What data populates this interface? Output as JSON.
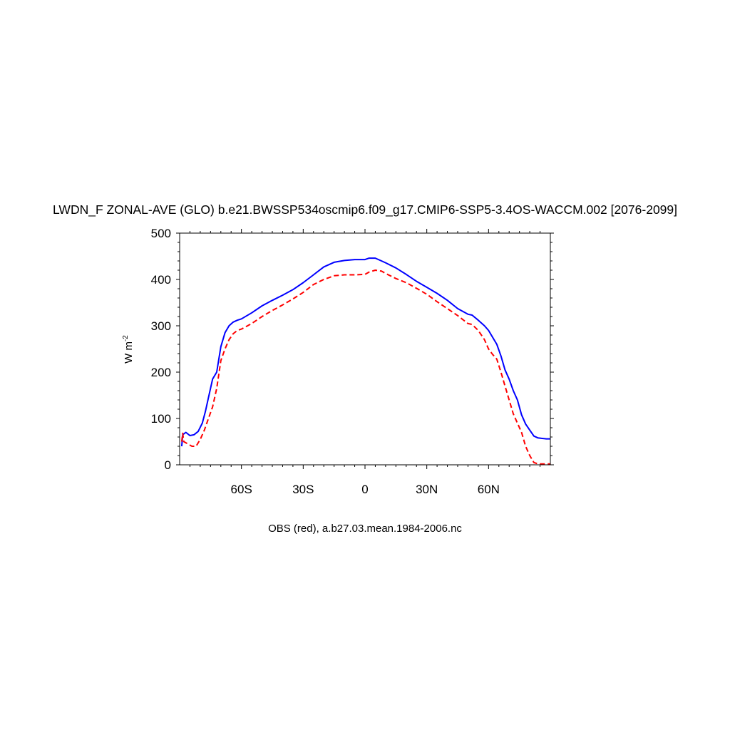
{
  "chart_data": {
    "type": "line",
    "title": "LWDN_F ZONAL-AVE (GLO) b.e21.BWSSP534oscmip6.f09_g17.CMIP6-SSP5-3.4OS-WACCM.002 [2076-2099]",
    "ylabel": "W m",
    "ylabel_sup": "-2",
    "xlabel": "",
    "caption": "OBS (red), a.b27.03.mean.1984-2006.nc",
    "xlim": [
      -90,
      90
    ],
    "ylim": [
      0,
      500
    ],
    "x_ticks": [
      {
        "value": -60,
        "label": "60S"
      },
      {
        "value": -30,
        "label": "30S"
      },
      {
        "value": 0,
        "label": "0"
      },
      {
        "value": 30,
        "label": "30N"
      },
      {
        "value": 60,
        "label": "60N"
      }
    ],
    "y_ticks": [
      {
        "value": 0,
        "label": "0"
      },
      {
        "value": 100,
        "label": "100"
      },
      {
        "value": 200,
        "label": "200"
      },
      {
        "value": 300,
        "label": "300"
      },
      {
        "value": 400,
        "label": "400"
      },
      {
        "value": 500,
        "label": "500"
      }
    ],
    "series": [
      {
        "color": "#0000ff",
        "dash": "solid",
        "x": [
          -89,
          -88.5,
          -87,
          -85,
          -83,
          -81,
          -79,
          -77.5,
          -76,
          -74,
          -72,
          -70,
          -68,
          -66,
          -64,
          -62,
          -60,
          -55,
          -50,
          -45,
          -40,
          -35,
          -30,
          -25,
          -20,
          -15,
          -10,
          -5,
          0,
          2,
          5,
          8,
          10,
          15,
          20,
          25,
          30,
          35,
          40,
          45,
          50,
          52,
          55,
          58,
          60,
          62,
          64,
          66,
          68,
          70,
          72,
          74,
          76,
          78,
          80,
          82,
          84,
          86,
          88,
          90
        ],
        "y": [
          40,
          65,
          70,
          63,
          65,
          72,
          90,
          115,
          145,
          185,
          200,
          255,
          285,
          300,
          308,
          312,
          315,
          328,
          343,
          355,
          366,
          378,
          393,
          410,
          427,
          437,
          441,
          443,
          443,
          446,
          446,
          440,
          436,
          425,
          411,
          396,
          383,
          370,
          355,
          337,
          325,
          323,
          312,
          300,
          290,
          275,
          260,
          235,
          205,
          185,
          160,
          140,
          108,
          88,
          75,
          62,
          58,
          57,
          56,
          56
        ]
      },
      {
        "color": "#ff0000",
        "dash": "dashed",
        "x": [
          -89,
          -88.5,
          -88,
          -86,
          -84,
          -82,
          -80,
          -78,
          -76,
          -74,
          -72,
          -70,
          -68,
          -66,
          -64,
          -62,
          -60,
          -55,
          -50,
          -45,
          -40,
          -35,
          -30,
          -25,
          -20,
          -15,
          -10,
          -5,
          0,
          2,
          5,
          8,
          10,
          15,
          20,
          25,
          30,
          35,
          40,
          45,
          50,
          52,
          55,
          58,
          60,
          62,
          64,
          66,
          68,
          70,
          72,
          74,
          76,
          78,
          80,
          82,
          84,
          86,
          88,
          90
        ],
        "y": [
          50,
          68,
          50,
          45,
          40,
          40,
          55,
          75,
          100,
          125,
          165,
          225,
          250,
          270,
          283,
          290,
          293,
          305,
          320,
          333,
          345,
          358,
          372,
          389,
          400,
          408,
          410,
          410,
          411,
          416,
          420,
          418,
          413,
          402,
          393,
          381,
          368,
          352,
          337,
          322,
          305,
          303,
          290,
          270,
          250,
          238,
          228,
          200,
          170,
          140,
          110,
          90,
          70,
          40,
          20,
          5,
          2,
          2,
          2,
          2
        ]
      }
    ]
  }
}
